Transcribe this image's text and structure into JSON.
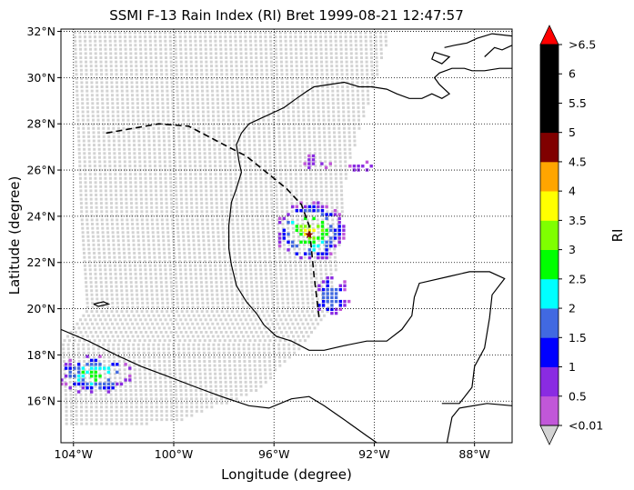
{
  "title": "SSMI F-13 Rain Index (RI) Bret 1999-08-21 12:47:57",
  "xlabel": "Longitude (degree)",
  "ylabel": "Latitude (degree)",
  "colorbar": {
    "label": "RI",
    "tick_labels": [
      "<0.01",
      "0.5",
      "1",
      "1.5",
      "2",
      "2.5",
      "3",
      "3.5",
      "4",
      "4.5",
      "5",
      "5.5",
      "6",
      ">6.5"
    ],
    "colors": [
      "#c157d8",
      "#8a2be2",
      "#0000ff",
      "#4169e1",
      "#00ffff",
      "#00ff00",
      "#7fff00",
      "#ffff00",
      "#ffa500",
      "#800000",
      "#000000",
      "#000000",
      "#000000"
    ],
    "under_color": "#d3d3d3",
    "over_color": "#ff0000"
  },
  "map": {
    "lon_range": [
      -104.5,
      -86.5
    ],
    "lat_range": [
      14.2,
      32.1
    ],
    "lon_ticks": [
      {
        "value": -104,
        "label": "104°W"
      },
      {
        "value": -100,
        "label": "100°W"
      },
      {
        "value": -96,
        "label": "96°W"
      },
      {
        "value": -92,
        "label": "92°W"
      },
      {
        "value": -88,
        "label": "88°W"
      }
    ],
    "lat_ticks": [
      {
        "value": 16,
        "label": "16°N"
      },
      {
        "value": 18,
        "label": "18°N"
      },
      {
        "value": 20,
        "label": "20°N"
      },
      {
        "value": 22,
        "label": "22°N"
      },
      {
        "value": 24,
        "label": "24°N"
      },
      {
        "value": 26,
        "label": "26°N"
      },
      {
        "value": 28,
        "label": "28°N"
      },
      {
        "value": 30,
        "label": "30°N"
      },
      {
        "value": 32,
        "label": "32°N"
      }
    ],
    "grid": "dotted",
    "swath_color": "#d3d3d3",
    "storm_center": {
      "lon": -94.6,
      "lat": 23.2,
      "color": "#8b0000"
    },
    "storm_track": [
      [
        -102.7,
        27.6
      ],
      [
        -100.6,
        28.0
      ],
      [
        -99.4,
        27.9
      ],
      [
        -98.0,
        27.1
      ],
      [
        -97.1,
        26.6
      ],
      [
        -96.3,
        25.9
      ],
      [
        -95.5,
        25.2
      ],
      [
        -94.9,
        24.5
      ],
      [
        -94.6,
        23.6
      ],
      [
        -94.5,
        22.5
      ],
      [
        -94.4,
        21.4
      ],
      [
        -94.3,
        20.5
      ],
      [
        -94.2,
        19.6
      ]
    ],
    "coastline": [
      [
        [
          -104.5,
          19.1
        ],
        [
          -103.4,
          18.6
        ],
        [
          -102.3,
          18.0
        ],
        [
          -101.3,
          17.5
        ],
        [
          -100.3,
          17.1
        ],
        [
          -99.1,
          16.6
        ],
        [
          -98.1,
          16.2
        ],
        [
          -97.0,
          15.8
        ],
        [
          -96.2,
          15.7
        ],
        [
          -95.3,
          16.1
        ],
        [
          -94.6,
          16.2
        ],
        [
          -94.0,
          15.8
        ],
        [
          -93.2,
          15.2
        ],
        [
          -92.3,
          14.5
        ],
        [
          -91.9,
          14.2
        ]
      ],
      [
        [
          -89.1,
          14.2
        ],
        [
          -88.9,
          15.3
        ],
        [
          -88.6,
          15.7
        ],
        [
          -87.5,
          15.9
        ],
        [
          -86.5,
          15.8
        ]
      ],
      [
        [
          -89.3,
          15.9
        ],
        [
          -88.6,
          15.9
        ],
        [
          -88.1,
          16.6
        ],
        [
          -88.0,
          17.5
        ],
        [
          -87.6,
          18.3
        ],
        [
          -87.4,
          19.6
        ],
        [
          -87.3,
          20.6
        ],
        [
          -86.8,
          21.3
        ],
        [
          -87.4,
          21.6
        ],
        [
          -88.2,
          21.6
        ],
        [
          -89.0,
          21.4
        ],
        [
          -90.2,
          21.1
        ],
        [
          -90.4,
          20.5
        ],
        [
          -90.5,
          19.7
        ],
        [
          -90.9,
          19.1
        ],
        [
          -91.5,
          18.6
        ],
        [
          -92.3,
          18.6
        ],
        [
          -93.2,
          18.4
        ],
        [
          -94.0,
          18.2
        ],
        [
          -94.6,
          18.2
        ],
        [
          -95.3,
          18.6
        ],
        [
          -95.9,
          18.8
        ],
        [
          -96.4,
          19.3
        ],
        [
          -96.7,
          19.8
        ],
        [
          -97.1,
          20.3
        ],
        [
          -97.5,
          21.0
        ],
        [
          -97.7,
          21.9
        ],
        [
          -97.8,
          22.6
        ],
        [
          -97.8,
          23.6
        ],
        [
          -97.7,
          24.6
        ],
        [
          -97.5,
          25.2
        ],
        [
          -97.3,
          25.9
        ],
        [
          -97.4,
          26.4
        ],
        [
          -97.5,
          27.1
        ],
        [
          -97.3,
          27.6
        ],
        [
          -97.0,
          28.0
        ],
        [
          -96.4,
          28.3
        ],
        [
          -95.6,
          28.7
        ],
        [
          -95.1,
          29.1
        ],
        [
          -94.7,
          29.4
        ],
        [
          -94.4,
          29.6
        ],
        [
          -93.8,
          29.7
        ],
        [
          -93.2,
          29.8
        ],
        [
          -92.6,
          29.6
        ],
        [
          -92.1,
          29.6
        ],
        [
          -91.5,
          29.5
        ],
        [
          -91.1,
          29.3
        ],
        [
          -90.6,
          29.1
        ],
        [
          -90.1,
          29.1
        ],
        [
          -89.7,
          29.3
        ],
        [
          -89.3,
          29.1
        ],
        [
          -89.0,
          29.3
        ],
        [
          -89.4,
          29.7
        ],
        [
          -89.6,
          30.0
        ],
        [
          -89.4,
          30.2
        ],
        [
          -88.9,
          30.4
        ],
        [
          -88.4,
          30.4
        ],
        [
          -88.1,
          30.3
        ],
        [
          -87.6,
          30.3
        ],
        [
          -87.0,
          30.4
        ],
        [
          -86.5,
          30.4
        ]
      ],
      [
        [
          -89.6,
          31.1
        ],
        [
          -89.0,
          30.9
        ],
        [
          -89.3,
          30.6
        ],
        [
          -89.7,
          30.8
        ],
        [
          -89.6,
          31.1
        ]
      ],
      [
        [
          -87.6,
          30.9
        ],
        [
          -87.2,
          31.3
        ],
        [
          -86.9,
          31.2
        ],
        [
          -86.5,
          31.4
        ]
      ],
      [
        [
          -86.5,
          31.8
        ],
        [
          -87.3,
          31.9
        ],
        [
          -87.9,
          31.7
        ],
        [
          -88.3,
          31.5
        ],
        [
          -88.8,
          31.4
        ],
        [
          -89.2,
          31.3
        ]
      ],
      [
        [
          -103.2,
          20.2
        ],
        [
          -102.8,
          20.3
        ],
        [
          -102.6,
          20.2
        ],
        [
          -103.0,
          20.1
        ],
        [
          -103.2,
          20.2
        ]
      ]
    ],
    "rain_clusters": [
      {
        "lon": -94.6,
        "lat": 23.4,
        "rx": 1.4,
        "ry": 1.3,
        "weights": [
          0.1,
          0.1,
          0.1,
          0.15,
          0.3,
          0.5,
          0.6,
          0.5
        ]
      },
      {
        "lon": -103.2,
        "lat": 17.2,
        "rx": 1.5,
        "ry": 0.9,
        "weights": [
          0.4,
          0.3,
          0.35,
          0.3,
          0.3,
          0.2,
          0,
          0
        ]
      },
      {
        "lon": -93.8,
        "lat": 20.6,
        "rx": 0.8,
        "ry": 0.9,
        "weights": [
          0.5,
          0.5,
          0.3,
          0.1,
          0,
          0,
          0,
          0
        ]
      },
      {
        "lon": -94.4,
        "lat": 26.4,
        "rx": 0.6,
        "ry": 0.4,
        "weights": [
          0.6,
          0.5,
          0,
          0,
          0,
          0,
          0,
          0
        ]
      },
      {
        "lon": -92.6,
        "lat": 26.2,
        "rx": 0.6,
        "ry": 0.3,
        "weights": [
          0.6,
          0.4,
          0,
          0,
          0,
          0,
          0,
          0
        ]
      }
    ]
  }
}
